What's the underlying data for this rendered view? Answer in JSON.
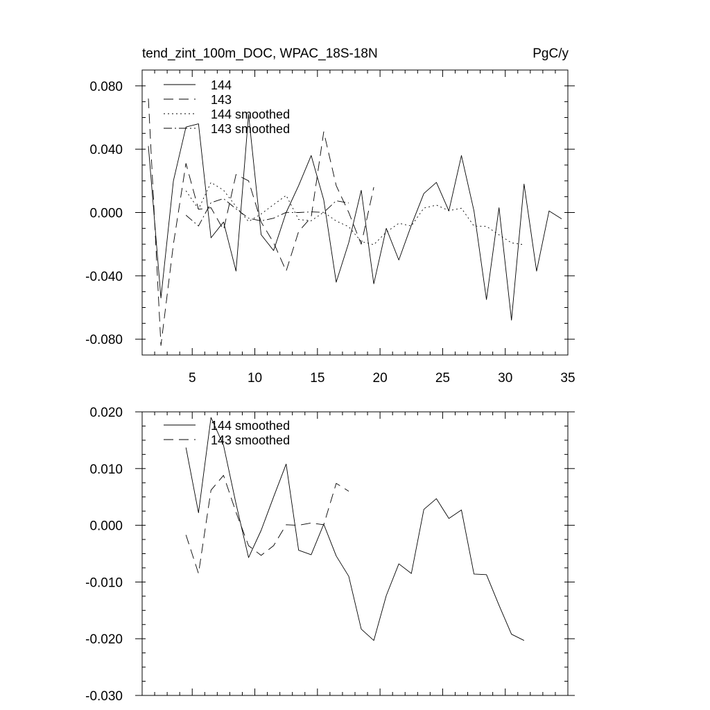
{
  "chart_data": [
    {
      "type": "line",
      "title": "tend_zint_100m_DOC, WPAC_18S-18N",
      "units_label": "PgC/y",
      "xlim": [
        1,
        35
      ],
      "ylim": [
        -0.09,
        0.09
      ],
      "yticks": [
        -0.08,
        -0.04,
        0.0,
        0.04,
        0.08
      ],
      "ytick_labels": [
        "-0.080",
        "-0.040",
        "0.000",
        "0.040",
        "0.080"
      ],
      "xticks": [
        5,
        10,
        15,
        20,
        25,
        30,
        35
      ],
      "xtick_labels": [
        "5",
        "10",
        "15",
        "20",
        "25",
        "30",
        "35"
      ],
      "legend_position": "top-left",
      "grid": false,
      "series": [
        {
          "name": "144",
          "style": "solid",
          "x": [
            1.5,
            2.5,
            3.5,
            4.5,
            5.5,
            6.5,
            7.5,
            8.5,
            9.5,
            10.5,
            11.5,
            12.5,
            13.5,
            14.5,
            15.5,
            16.5,
            17.5,
            18.5,
            19.5,
            20.5,
            21.5,
            22.5,
            23.5,
            24.5,
            25.5,
            26.5,
            27.5,
            28.5,
            29.5,
            30.5,
            31.5,
            32.5,
            33.5,
            34.5
          ],
          "values": [
            0.042,
            -0.054,
            0.02,
            0.054,
            0.056,
            -0.016,
            -0.006,
            -0.037,
            0.062,
            -0.014,
            -0.024,
            0.0,
            0.017,
            0.036,
            0.008,
            -0.044,
            -0.019,
            0.014,
            -0.045,
            -0.01,
            -0.03,
            -0.008,
            0.012,
            0.019,
            0.001,
            0.036,
            0.001,
            -0.055,
            0.003,
            -0.068,
            0.018,
            -0.037,
            0.001,
            -0.004
          ]
        },
        {
          "name": "143",
          "style": "dashed",
          "x": [
            1.5,
            2.5,
            3.5,
            4.5,
            5.5,
            6.5,
            7.5,
            8.5,
            9.5,
            10.5,
            11.5,
            12.5,
            13.5,
            14.5,
            15.5,
            16.5,
            17.5,
            18.5,
            19.5
          ],
          "values": [
            0.072,
            -0.084,
            -0.02,
            0.031,
            0.002,
            0.003,
            -0.011,
            0.024,
            0.02,
            -0.006,
            -0.019,
            -0.037,
            -0.012,
            -0.003,
            0.051,
            0.017,
            0.0,
            -0.02,
            0.016
          ]
        },
        {
          "name": "144 smoothed",
          "style": "dotted",
          "x": [
            4.5,
            5.5,
            6.5,
            7.5,
            8.5,
            9.5,
            10.5,
            11.5,
            12.5,
            13.5,
            14.5,
            15.5,
            16.5,
            17.5,
            18.5,
            19.5,
            20.5,
            21.5,
            22.5,
            23.5,
            24.5,
            25.5,
            26.5,
            27.5,
            28.5,
            29.5,
            30.5,
            31.5
          ],
          "values": [
            0.0137,
            0.0022,
            0.019,
            0.0141,
            0.0038,
            -0.0057,
            -0.0009,
            0.005,
            0.0108,
            -0.0044,
            -0.0052,
            0.0002,
            -0.0054,
            -0.009,
            -0.0183,
            -0.0203,
            -0.0124,
            -0.0068,
            -0.0085,
            0.0028,
            0.0047,
            0.0012,
            0.0027,
            -0.0086,
            -0.0087,
            -0.0141,
            -0.0192,
            -0.0203
          ]
        },
        {
          "name": "143 smoothed",
          "style": "dashdot",
          "x": [
            4.5,
            5.5,
            6.5,
            7.5,
            8.5,
            9.5,
            10.5,
            11.5,
            12.5,
            13.5,
            14.5,
            15.5,
            16.5,
            17.5
          ],
          "values": [
            -0.0017,
            -0.0085,
            0.0062,
            0.0088,
            0.0023,
            -0.0036,
            -0.0053,
            -0.0036,
            0.0001,
            0.0,
            0.0004,
            0.0001,
            0.0074,
            0.006
          ]
        }
      ]
    },
    {
      "type": "line",
      "xlim": [
        1,
        35
      ],
      "ylim": [
        -0.03,
        0.02
      ],
      "yticks": [
        -0.03,
        -0.02,
        -0.01,
        0.0,
        0.01,
        0.02
      ],
      "ytick_labels": [
        "-0.030",
        "-0.020",
        "-0.010",
        "0.000",
        "0.010",
        "0.020"
      ],
      "xticks": [
        5,
        10,
        15,
        20,
        25,
        30,
        35
      ],
      "legend_position": "top-left",
      "grid": false,
      "series": [
        {
          "name": "144 smoothed",
          "style": "solid",
          "x": [
            4.5,
            5.5,
            6.5,
            7.5,
            8.5,
            9.5,
            10.5,
            11.5,
            12.5,
            13.5,
            14.5,
            15.5,
            16.5,
            17.5,
            18.5,
            19.5,
            20.5,
            21.5,
            22.5,
            23.5,
            24.5,
            25.5,
            26.5,
            27.5,
            28.5,
            29.5,
            30.5,
            31.5
          ],
          "values": [
            0.0137,
            0.0022,
            0.019,
            0.0141,
            0.0038,
            -0.0057,
            -0.0009,
            0.005,
            0.0108,
            -0.0044,
            -0.0052,
            0.0002,
            -0.0054,
            -0.009,
            -0.0183,
            -0.0203,
            -0.0124,
            -0.0068,
            -0.0085,
            0.0028,
            0.0047,
            0.0012,
            0.0027,
            -0.0086,
            -0.0087,
            -0.0141,
            -0.0192,
            -0.0203
          ]
        },
        {
          "name": "143 smoothed",
          "style": "dashed",
          "x": [
            4.5,
            5.5,
            6.5,
            7.5,
            8.5,
            9.5,
            10.5,
            11.5,
            12.5,
            13.5,
            14.5,
            15.5,
            16.5,
            17.5
          ],
          "values": [
            -0.0017,
            -0.0085,
            0.0062,
            0.0088,
            0.0023,
            -0.0036,
            -0.0053,
            -0.0036,
            0.0001,
            0.0,
            0.0004,
            0.0001,
            0.0074,
            0.006
          ]
        }
      ]
    }
  ],
  "colors": {
    "line": "#000000",
    "background": "#ffffff"
  }
}
